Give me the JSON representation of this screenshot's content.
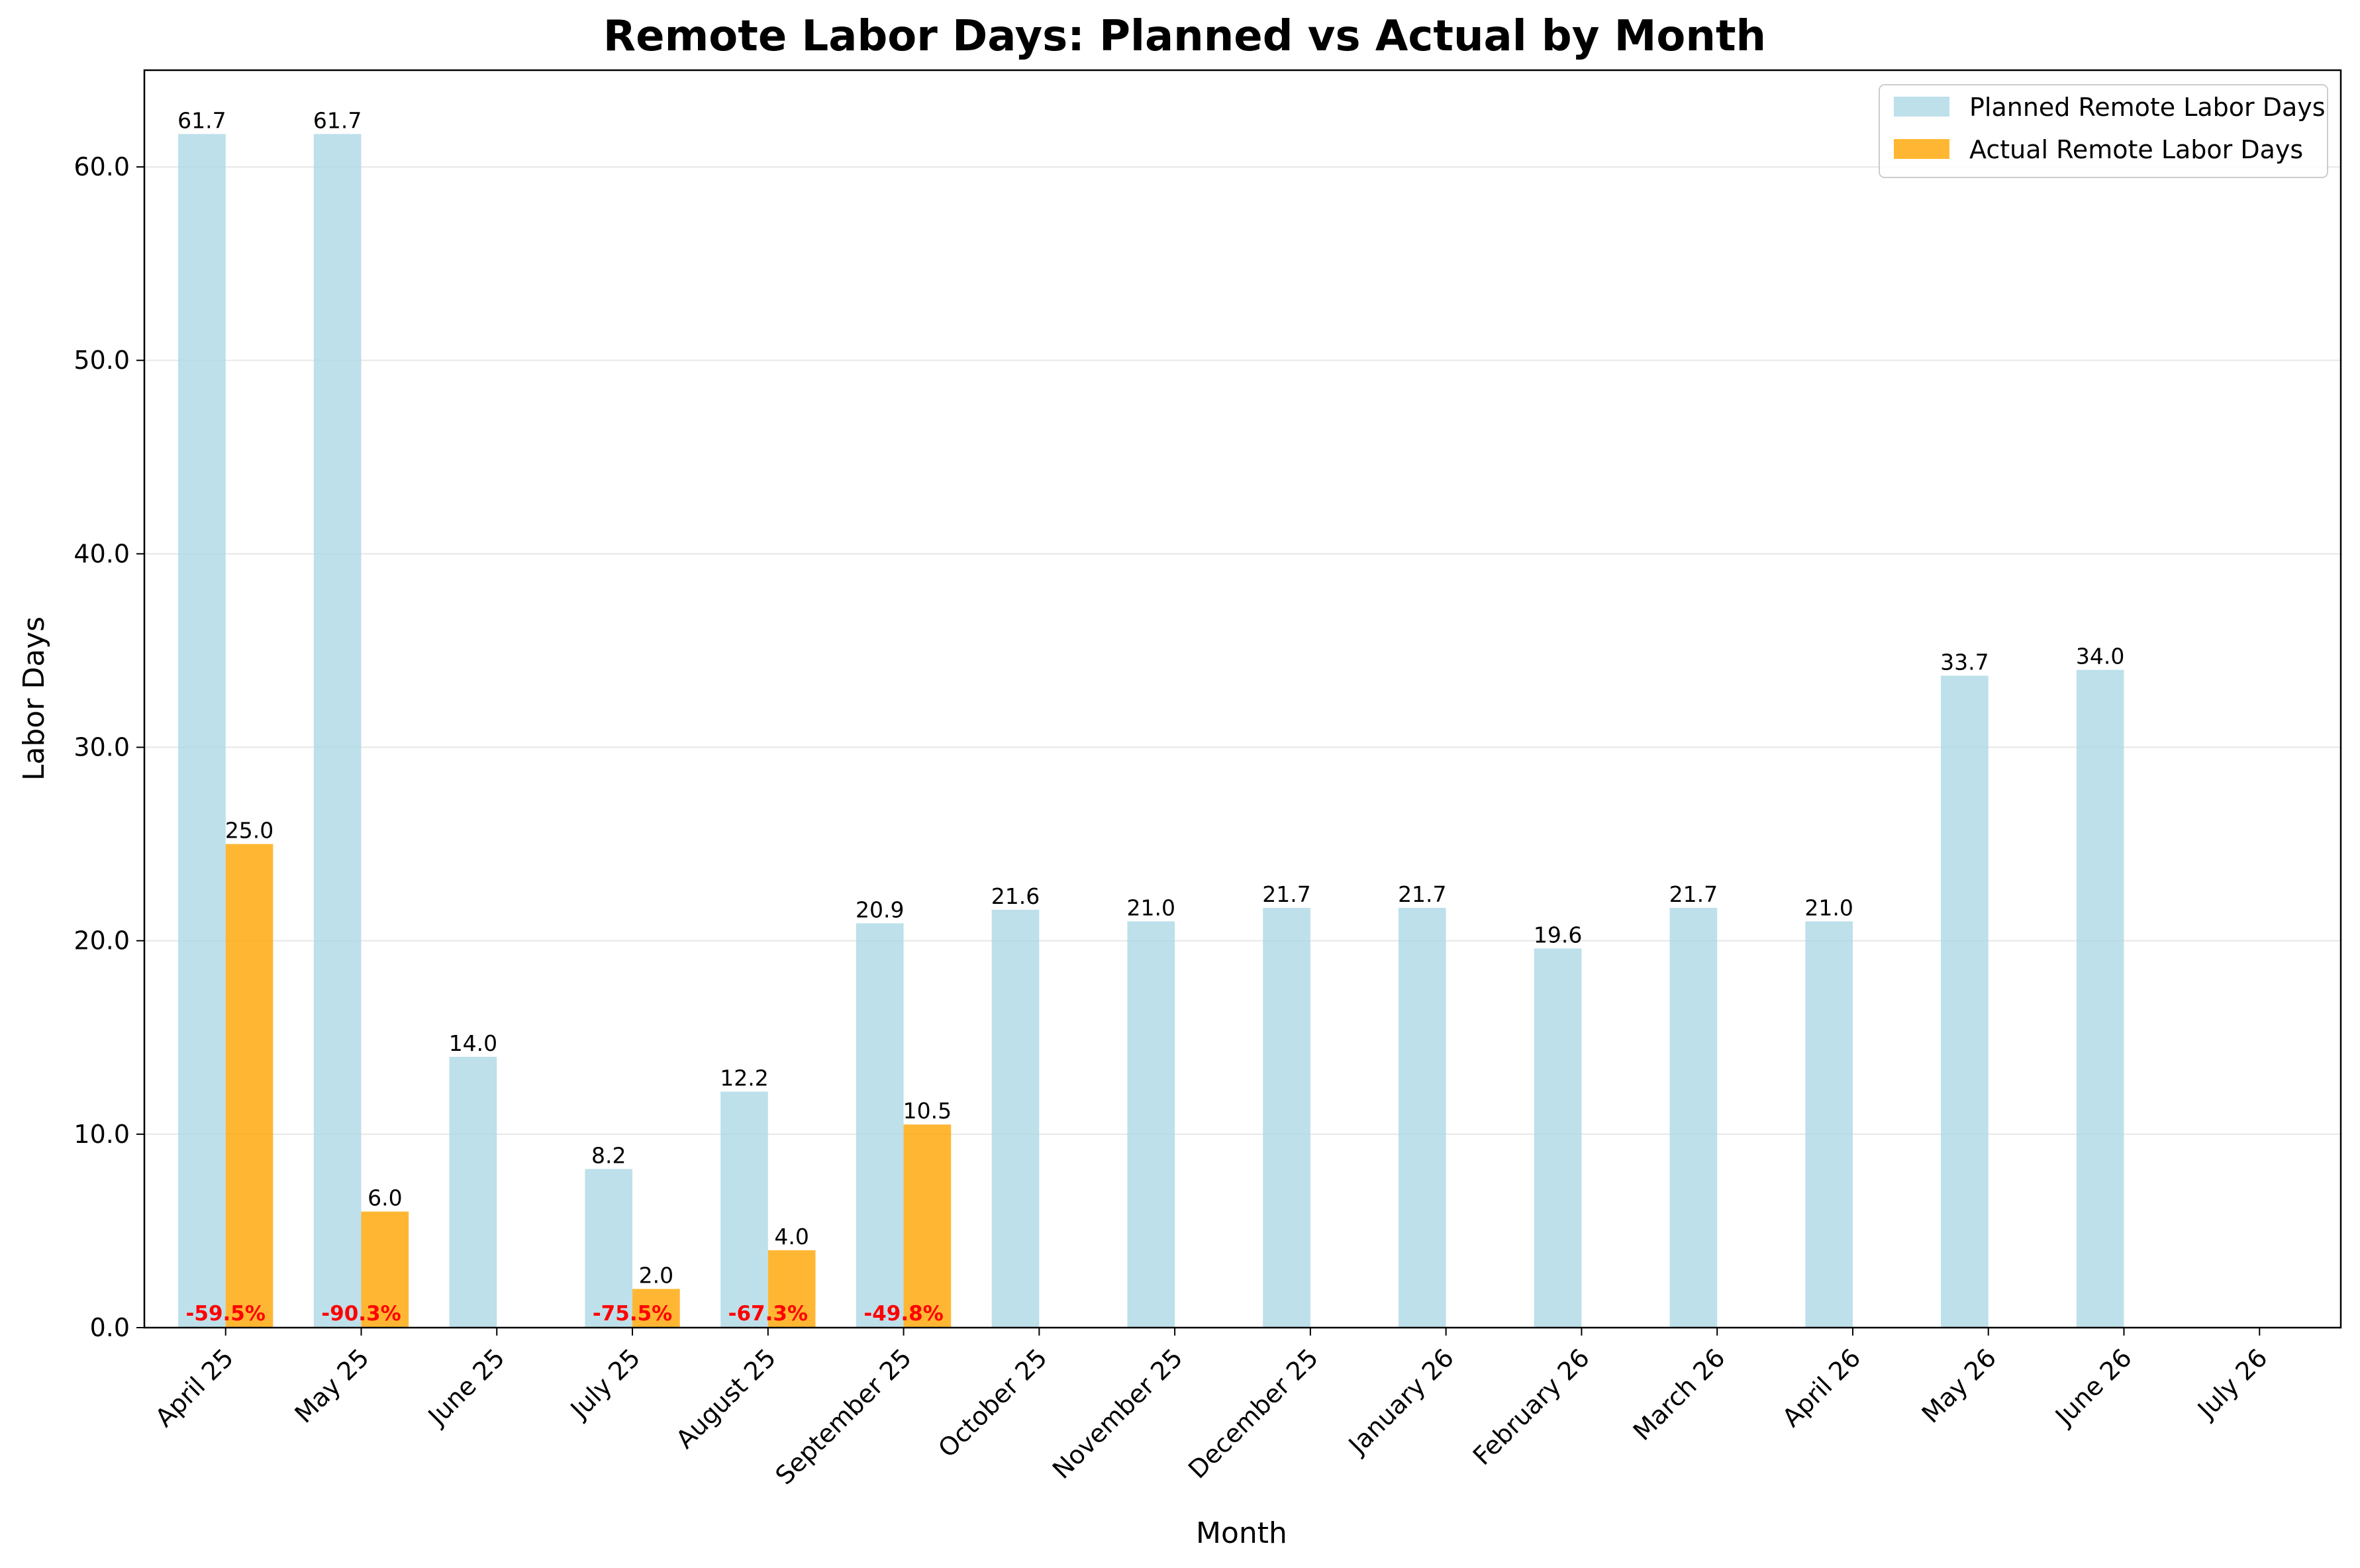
{
  "chart_data": {
    "type": "bar",
    "title": "Remote Labor Days: Planned vs Actual by Month",
    "xlabel": "Month",
    "ylabel": "Labor Days",
    "ylim": [
      0,
      65
    ],
    "yticks": [
      0,
      10,
      20,
      30,
      40,
      50,
      60
    ],
    "grid": "y",
    "legend": "top-right",
    "categories": [
      "April 25",
      "May 25",
      "June 25",
      "July 25",
      "August 25",
      "September 25",
      "October 25",
      "November 25",
      "December 25",
      "January 26",
      "February 26",
      "March 26",
      "April 26",
      "May 26",
      "June 26",
      "July 26"
    ],
    "series": [
      {
        "name": "Planned Remote Labor Days",
        "color": "#add8e6",
        "values": [
          61.7,
          61.7,
          14.0,
          8.2,
          12.2,
          20.9,
          21.6,
          21.0,
          21.7,
          21.7,
          19.6,
          21.7,
          21.0,
          33.7,
          34.0,
          null
        ]
      },
      {
        "name": "Actual Remote Labor Days",
        "color": "#ffa500",
        "values": [
          25.0,
          6.0,
          null,
          2.0,
          4.0,
          10.5,
          null,
          null,
          null,
          null,
          null,
          null,
          null,
          null,
          null,
          null
        ]
      }
    ],
    "variance_labels": [
      "-59.5%",
      "-90.3%",
      null,
      "-75.5%",
      "-67.3%",
      "-49.8%",
      null,
      null,
      null,
      null,
      null,
      null,
      null,
      null,
      null,
      null
    ],
    "variance_color": "#ff0000"
  }
}
